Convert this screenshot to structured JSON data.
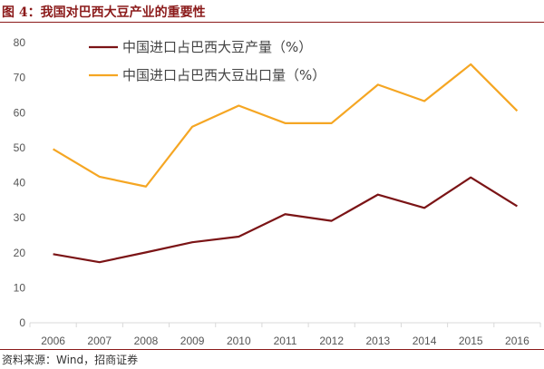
{
  "title": "图 4：我国对巴西大豆产业的重要性",
  "source": "资料来源：Wind，招商证券",
  "chart_data": {
    "type": "line",
    "title": "图 4：我国对巴西大豆产业的重要性",
    "xlabel": "",
    "ylabel": "",
    "ylim": [
      0,
      80
    ],
    "yticks": [
      0,
      10,
      20,
      30,
      40,
      50,
      60,
      70,
      80
    ],
    "categories": [
      "2006",
      "2007",
      "2008",
      "2009",
      "2010",
      "2011",
      "2012",
      "2013",
      "2014",
      "2015",
      "2016"
    ],
    "legend_position": "top-left",
    "grid": false,
    "series": [
      {
        "name": "中国进口占巴西大豆产量（%）",
        "color": "#7b1416",
        "values": [
          19.6,
          17.3,
          20.1,
          23.0,
          24.6,
          31.0,
          29.1,
          36.6,
          32.8,
          41.5,
          33.3
        ]
      },
      {
        "name": "中国进口占巴西大豆出口量（%）",
        "color": "#f5a623",
        "values": [
          49.6,
          41.7,
          38.9,
          56.0,
          62.0,
          57.0,
          57.0,
          68.0,
          63.3,
          73.8,
          60.5
        ]
      }
    ]
  }
}
